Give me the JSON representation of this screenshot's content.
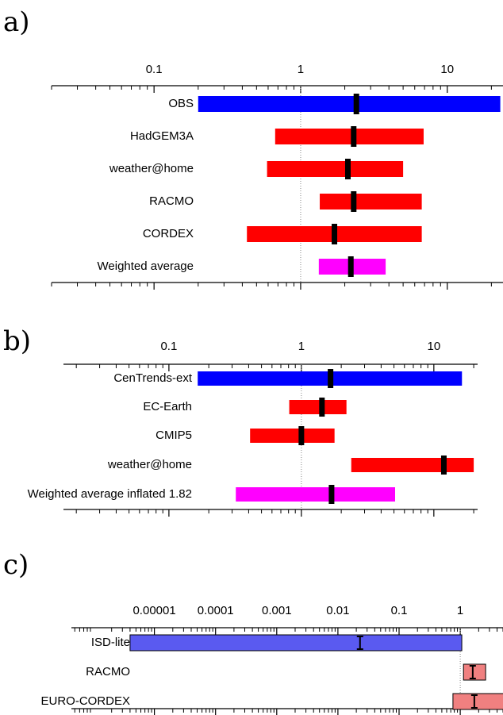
{
  "chart_data": [
    {
      "type": "interval",
      "title": "a)",
      "style": "block",
      "xscale": "log",
      "categories": [
        "OBS",
        "HadGEM3A",
        "weather@home",
        "RACMO",
        "CORDEX",
        "Weighted average"
      ],
      "values": [
        2.4,
        2.3,
        2.1,
        2.3,
        1.7,
        2.2
      ],
      "lower": [
        0.2,
        0.67,
        0.59,
        1.35,
        0.43,
        1.33
      ],
      "upper": [
        23,
        6.9,
        5.0,
        6.7,
        6.7,
        3.8
      ],
      "colors": [
        "#0000ff",
        "#ff0000",
        "#ff0000",
        "#ff0000",
        "#ff0000",
        "#ff00ff"
      ],
      "xlim": [
        0.02,
        24
      ],
      "xticks": [
        0.1,
        1,
        10
      ],
      "refline": 1
    },
    {
      "type": "interval",
      "title": "b)",
      "style": "block",
      "xscale": "log",
      "categories": [
        "CenTrends-ext",
        "EC-Earth",
        "CMIP5",
        "weather@home",
        "Weighted average inflated 1.82"
      ],
      "values": [
        1.66,
        1.43,
        1.0,
        11.9,
        1.69
      ],
      "lower": [
        0.165,
        0.81,
        0.41,
        2.38,
        0.32
      ],
      "upper": [
        16.3,
        2.19,
        1.78,
        20,
        5.1
      ],
      "colors": [
        "#0000ff",
        "#ff0000",
        "#ff0000",
        "#ff0000",
        "#ff00ff"
      ],
      "xlim": [
        0.016,
        21.4
      ],
      "xticks": [
        0.1,
        1,
        10
      ],
      "refline": 1
    },
    {
      "type": "interval",
      "title": "c)",
      "style": "errorbar",
      "xscale": "log",
      "categories": [
        "ISD-lite",
        "RACMO",
        "EURO-CORDEX"
      ],
      "values": [
        0.023,
        1.6,
        1.7
      ],
      "lower": [
        4e-06,
        1.13,
        0.76
      ],
      "upper": [
        1.06,
        2.6,
        6
      ],
      "colors": [
        "#5a5af0",
        "#f08080",
        "#f08080"
      ],
      "xlim": [
        4.4e-07,
        5
      ],
      "xticks": [
        1e-05,
        0.0001,
        0.001,
        0.01,
        0.1,
        1
      ],
      "refline": 1
    }
  ]
}
